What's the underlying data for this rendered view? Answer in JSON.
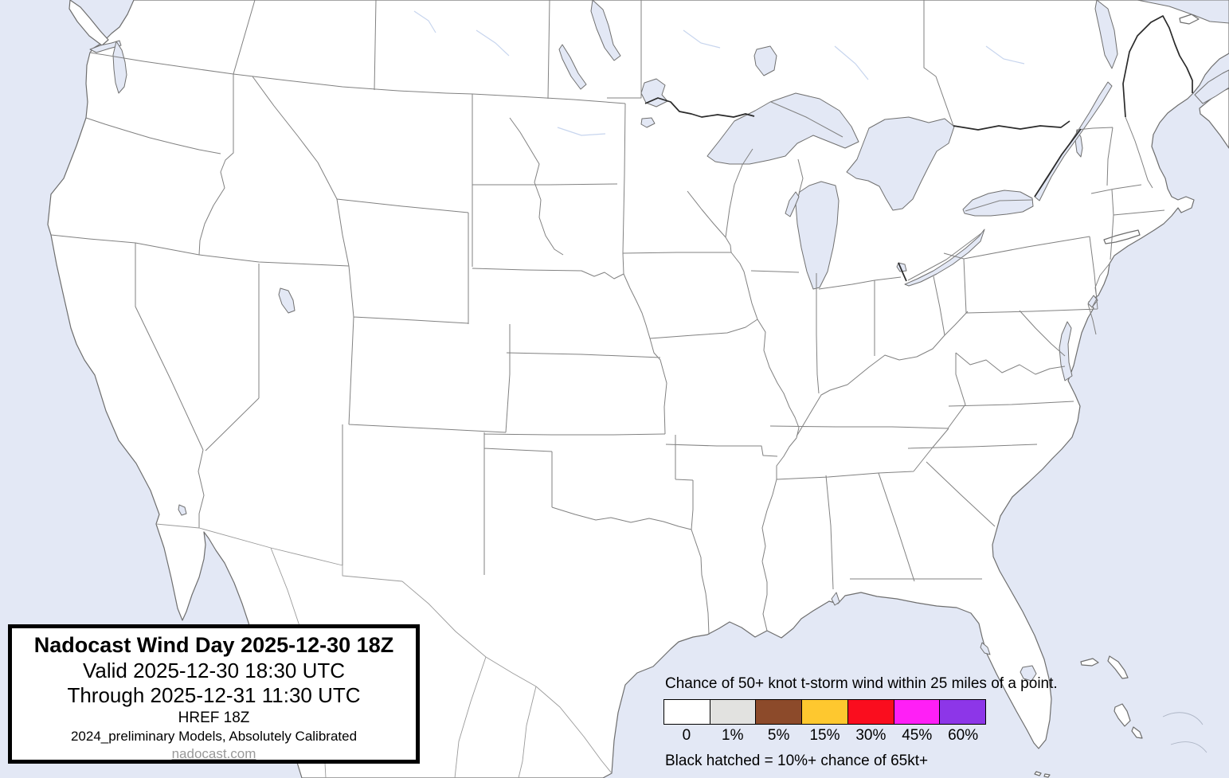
{
  "title_box": {
    "title": "Nadocast Wind Day 2025-12-30 18Z",
    "valid": "Valid 2025-12-30 18:30 UTC",
    "through": "Through 2025-12-31 11:30 UTC",
    "model": "HREF 18Z",
    "calibration": "2024_preliminary Models, Absolutely Calibrated",
    "website": "nadocast.com"
  },
  "legend": {
    "title": "Chance of 50+ knot t-storm wind within 25 miles of a point.",
    "note": "Black hatched = 10%+ chance of 65kt+",
    "bins": [
      {
        "label": "0",
        "color": "#ffffff"
      },
      {
        "label": "1%",
        "color": "#e2e2e0"
      },
      {
        "label": "5%",
        "color": "#8c4a2a"
      },
      {
        "label": "15%",
        "color": "#fec82f"
      },
      {
        "label": "30%",
        "color": "#fa0d1e"
      },
      {
        "label": "45%",
        "color": "#ff1ff6"
      },
      {
        "label": "60%",
        "color": "#8d36e8"
      }
    ]
  },
  "colors": {
    "water": "#e3e8f5",
    "land": "#ffffff",
    "coastline": "#6e6e6e",
    "state_border": "#818181",
    "national_border": "#2a2a2a",
    "river": "#c7d5ee",
    "box_border": "#000000",
    "link_gray": "#9a9a9a"
  }
}
